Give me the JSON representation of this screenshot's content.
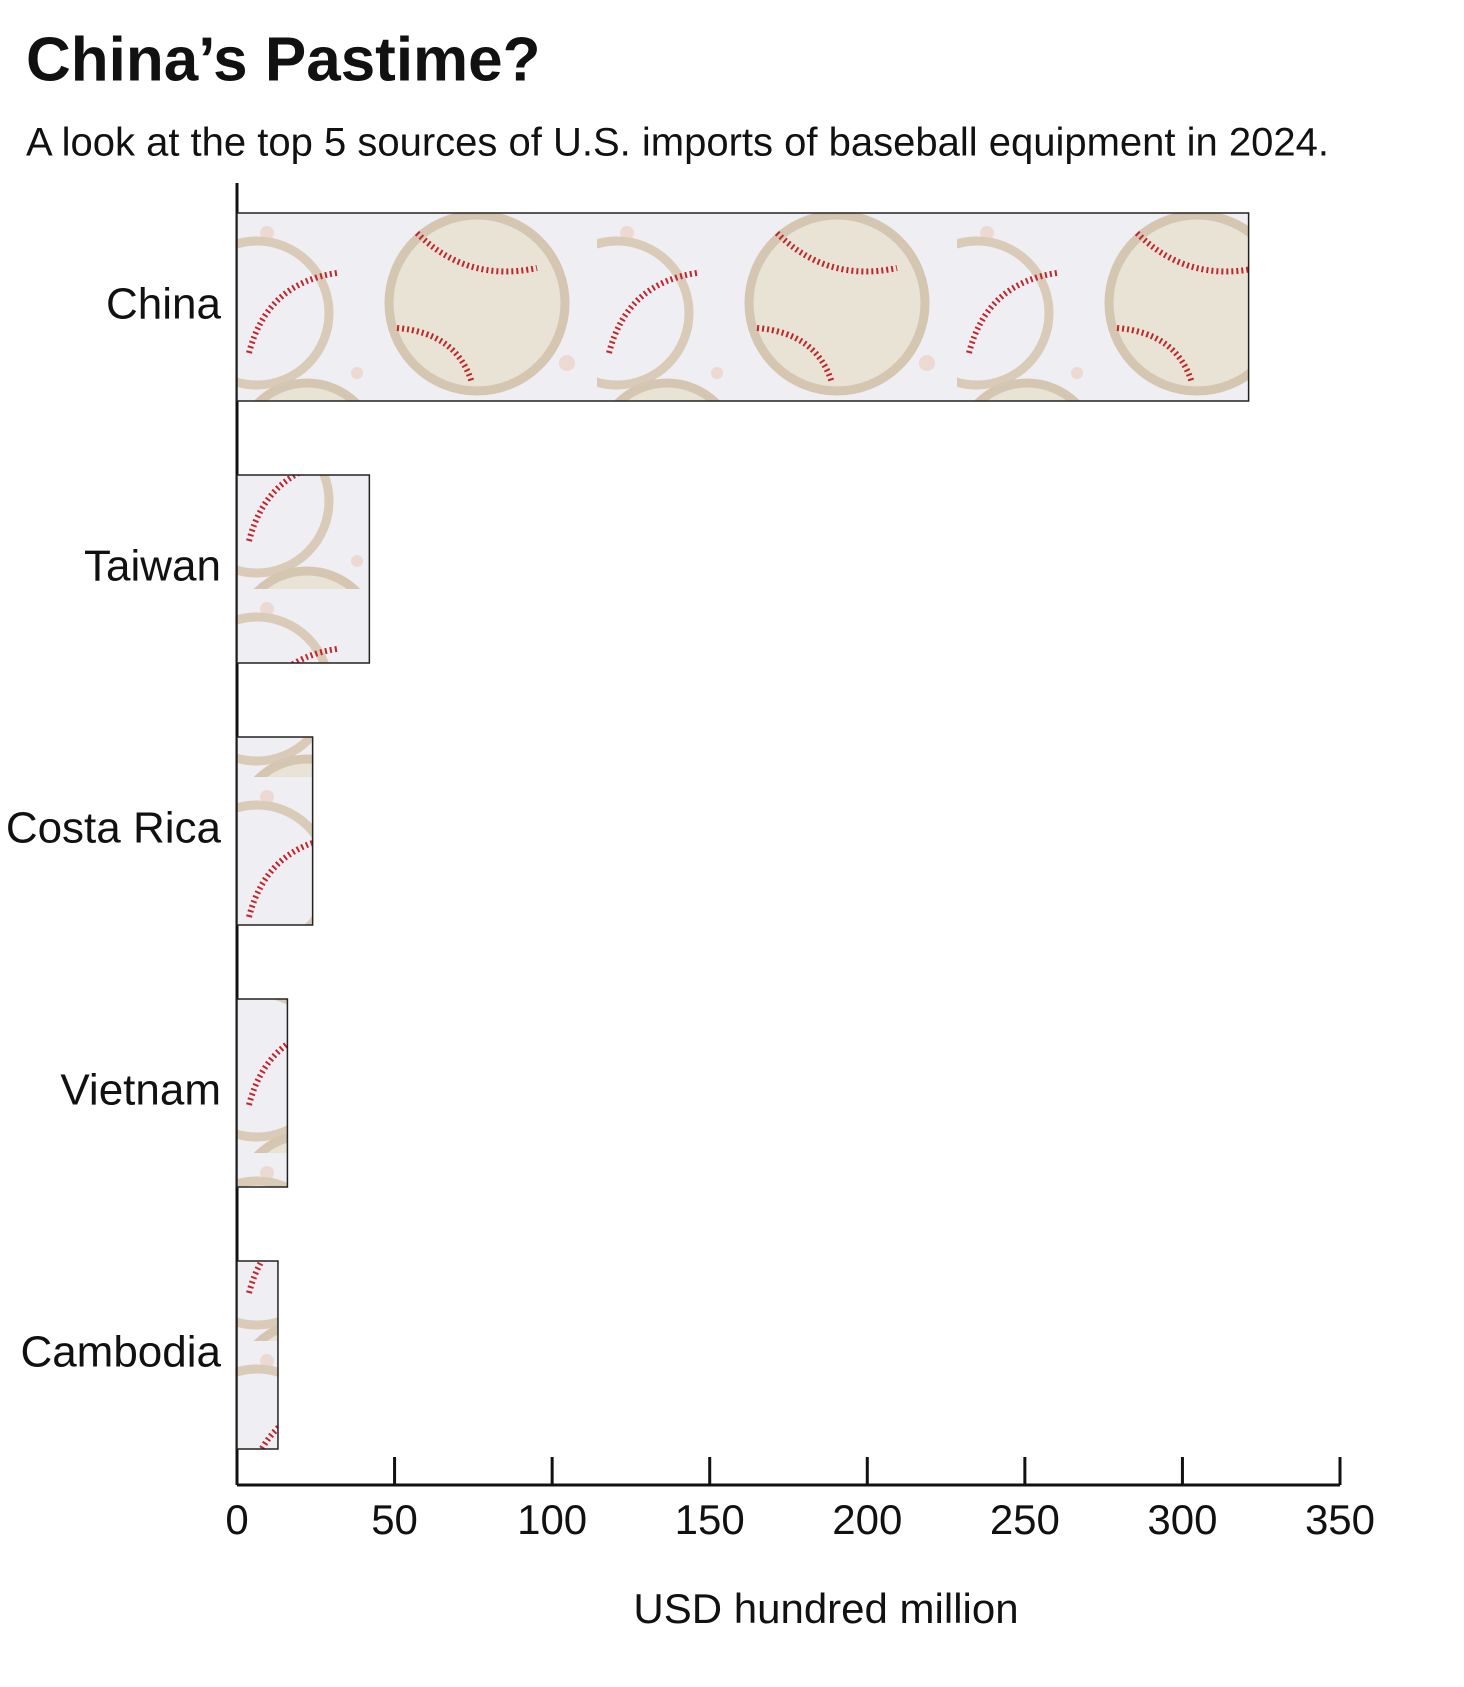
{
  "chart_data": {
    "type": "bar",
    "orientation": "horizontal",
    "title": "China’s Pastime?",
    "subtitle": "A look at the top 5 sources of U.S. imports of baseball equipment in 2024.",
    "categories": [
      "China",
      "Taiwan",
      "Costa Rica",
      "Vietnam",
      "Cambodia"
    ],
    "values": [
      321,
      42,
      24,
      16,
      13
    ],
    "x_label": "USD hundred million",
    "xlim": [
      0,
      350
    ],
    "xticks": [
      0,
      50,
      100,
      150,
      200,
      250,
      300,
      350
    ]
  }
}
